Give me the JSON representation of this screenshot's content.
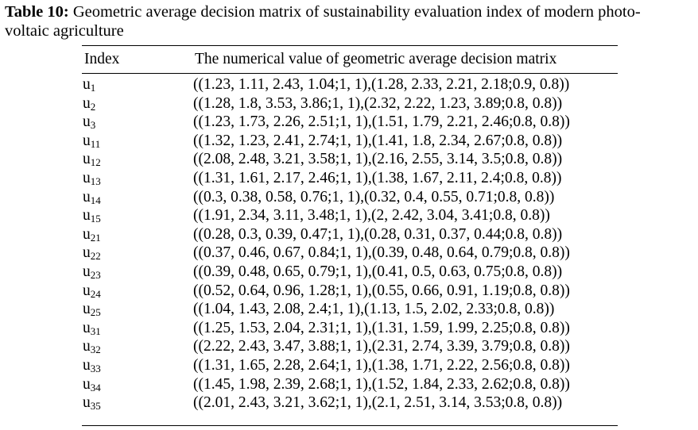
{
  "caption": {
    "label": "Table 10:",
    "text_line1": " Geometric average decision matrix of sustainability evaluation index of modern photo-",
    "text_line2": "voltaic agriculture"
  },
  "table": {
    "headers": [
      "Index",
      "The numerical value of geometric average decision matrix"
    ],
    "rows": [
      {
        "index_base": "u",
        "index_sub": "1",
        "value": "((1.23, 1.11, 2.43, 1.04;1, 1),(1.28, 2.33, 2.21, 2.18;0.9, 0.8))"
      },
      {
        "index_base": "u",
        "index_sub": "2",
        "value": "((1.28, 1.8, 3.53, 3.86;1, 1),(2.32, 2.22, 1.23, 3.89;0.8, 0.8))"
      },
      {
        "index_base": "u",
        "index_sub": "3",
        "value": "((1.23, 1.73, 2.26, 2.51;1, 1),(1.51, 1.79, 2.21, 2.46;0.8, 0.8))"
      },
      {
        "index_base": "u",
        "index_sub": "11",
        "value": "((1.32, 1.23, 2.41, 2.74;1, 1),(1.41, 1.8, 2.34, 2.67;0.8, 0.8))"
      },
      {
        "index_base": "u",
        "index_sub": "12",
        "value": "((2.08, 2.48, 3.21, 3.58;1, 1),(2.16, 2.55, 3.14, 3.5;0.8, 0.8))"
      },
      {
        "index_base": "u",
        "index_sub": "13",
        "value": "((1.31, 1.61, 2.17, 2.46;1, 1),(1.38, 1.67, 2.11, 2.4;0.8, 0.8))"
      },
      {
        "index_base": "u",
        "index_sub": "14",
        "value": "((0.3, 0.38, 0.58, 0.76;1, 1),(0.32, 0.4, 0.55, 0.71;0.8, 0.8))"
      },
      {
        "index_base": "u",
        "index_sub": "15",
        "value": "((1.91, 2.34, 3.11, 3.48;1, 1),(2, 2.42, 3.04, 3.41;0.8, 0.8))"
      },
      {
        "index_base": "u",
        "index_sub": "21",
        "value": "((0.28, 0.3, 0.39, 0.47;1, 1),(0.28, 0.31, 0.37, 0.44;0.8, 0.8))"
      },
      {
        "index_base": "u",
        "index_sub": "22",
        "value": "((0.37, 0.46, 0.67, 0.84;1, 1),(0.39, 0.48, 0.64, 0.79;0.8, 0.8))"
      },
      {
        "index_base": "u",
        "index_sub": "23",
        "value": "((0.39, 0.48, 0.65, 0.79;1, 1),(0.41, 0.5, 0.63, 0.75;0.8, 0.8))"
      },
      {
        "index_base": "u",
        "index_sub": "24",
        "value": "((0.52, 0.64, 0.96, 1.28;1, 1),(0.55, 0.66, 0.91, 1.19;0.8, 0.8))"
      },
      {
        "index_base": "u",
        "index_sub": "25",
        "value": "((1.04, 1.43, 2.08, 2.4;1, 1),(1.13, 1.5, 2.02, 2.33;0.8, 0.8))"
      },
      {
        "index_base": "u",
        "index_sub": "31",
        "value": "((1.25, 1.53, 2.04, 2.31;1, 1),(1.31, 1.59, 1.99, 2.25;0.8, 0.8))"
      },
      {
        "index_base": "u",
        "index_sub": "32",
        "value": "((2.22, 2.43, 3.47, 3.88;1, 1),(2.31, 2.74, 3.39, 3.79;0.8, 0.8))"
      },
      {
        "index_base": "u",
        "index_sub": "33",
        "value": "((1.31, 1.65, 2.28, 2.64;1, 1),(1.38, 1.71, 2.22, 2.56;0.8, 0.8))"
      },
      {
        "index_base": "u",
        "index_sub": "34",
        "value": "((1.45, 1.98, 2.39, 2.68;1, 1),(1.52, 1.84, 2.33, 2.62;0.8, 0.8))"
      },
      {
        "index_base": "u",
        "index_sub": "35",
        "value": "((2.01, 2.43, 3.21, 3.62;1, 1),(2.1, 2.51, 3.14, 3.53;0.8, 0.8))"
      }
    ]
  }
}
